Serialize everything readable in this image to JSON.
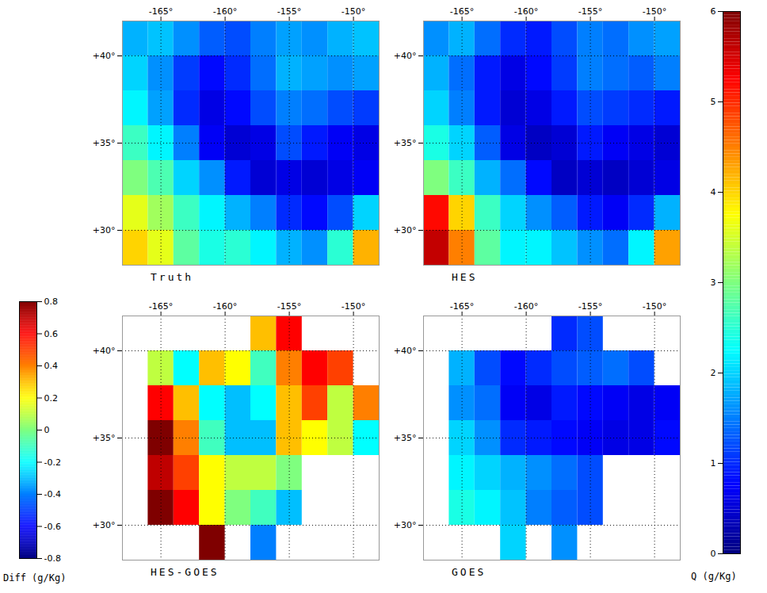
{
  "chart_data": [
    {
      "type": "heatmap",
      "title": "Truth",
      "x": [
        -167,
        -165,
        -163,
        -161,
        -159,
        -157,
        -155,
        -153,
        -151,
        -149
      ],
      "y": [
        41,
        39,
        37,
        35,
        33,
        31,
        29
      ],
      "values": [
        [
          1.8,
          1.9,
          1.6,
          1.3,
          1.2,
          1.5,
          1.7,
          1.6,
          1.8,
          1.9
        ],
        [
          2.0,
          1.6,
          1.1,
          0.8,
          1.0,
          1.4,
          1.8,
          1.7,
          1.6,
          1.7
        ],
        [
          2.2,
          1.7,
          1.0,
          0.6,
          0.8,
          1.2,
          1.5,
          1.4,
          1.2,
          1.1
        ],
        [
          2.6,
          2.2,
          1.5,
          0.7,
          0.5,
          0.6,
          1.2,
          0.9,
          0.7,
          0.6
        ],
        [
          3.0,
          2.7,
          2.0,
          1.6,
          0.9,
          0.5,
          0.6,
          0.5,
          0.6,
          0.7
        ],
        [
          3.6,
          3.2,
          2.6,
          2.2,
          1.8,
          1.5,
          1.0,
          0.8,
          1.2,
          2.0
        ],
        [
          4.0,
          3.6,
          2.8,
          2.4,
          2.5,
          2.2,
          1.8,
          1.6,
          2.5,
          4.2
        ]
      ],
      "xlim": [
        -168,
        -148
      ],
      "ylim": [
        28,
        42
      ],
      "xticks": [
        {
          "value": -165,
          "label": "-165°"
        },
        {
          "value": -160,
          "label": "-160°"
        },
        {
          "value": -155,
          "label": "-155°"
        },
        {
          "value": -150,
          "label": "-150°"
        }
      ],
      "yticks": [
        {
          "value": 30,
          "label": "+30°"
        },
        {
          "value": 35,
          "label": "+35°"
        },
        {
          "value": 40,
          "label": "+40°"
        }
      ],
      "grid": true,
      "colorbar": "Q (g/Kg)"
    },
    {
      "type": "heatmap",
      "title": "HES",
      "x": [
        -167,
        -165,
        -163,
        -161,
        -159,
        -157,
        -155,
        -153,
        -151,
        -149
      ],
      "y": [
        41,
        39,
        37,
        35,
        33,
        31,
        29
      ],
      "values": [
        [
          1.6,
          1.8,
          1.4,
          1.0,
          0.9,
          1.2,
          1.5,
          1.4,
          1.6,
          1.7
        ],
        [
          1.8,
          1.4,
          0.9,
          0.6,
          0.8,
          1.1,
          1.5,
          1.4,
          1.3,
          1.5
        ],
        [
          2.0,
          1.5,
          0.9,
          0.5,
          0.6,
          0.9,
          1.2,
          1.1,
          1.0,
          0.9
        ],
        [
          2.4,
          2.0,
          1.3,
          0.6,
          0.4,
          0.5,
          0.9,
          0.7,
          0.6,
          0.5
        ],
        [
          3.0,
          2.6,
          1.8,
          1.4,
          0.8,
          0.4,
          0.5,
          0.4,
          0.5,
          0.6
        ],
        [
          5.2,
          4.0,
          2.6,
          2.0,
          1.6,
          1.3,
          0.9,
          0.7,
          1.0,
          1.8
        ],
        [
          5.6,
          4.5,
          2.8,
          2.2,
          2.2,
          1.9,
          1.6,
          1.4,
          2.2,
          4.3
        ]
      ],
      "xlim": [
        -168,
        -148
      ],
      "ylim": [
        28,
        42
      ],
      "xticks": [
        {
          "value": -165,
          "label": "-165°"
        },
        {
          "value": -160,
          "label": "-160°"
        },
        {
          "value": -155,
          "label": "-155°"
        },
        {
          "value": -150,
          "label": "-150°"
        }
      ],
      "yticks": [
        {
          "value": 30,
          "label": "+30°"
        },
        {
          "value": 35,
          "label": "+35°"
        },
        {
          "value": 40,
          "label": "+40°"
        }
      ],
      "grid": true,
      "colorbar": "Q (g/Kg)"
    },
    {
      "type": "heatmap",
      "title": "HES-GOES",
      "x": [
        -167,
        -165,
        -163,
        -161,
        -159,
        -157,
        -155,
        -153,
        -151,
        -149
      ],
      "y": [
        41,
        39,
        37,
        35,
        33,
        31,
        29
      ],
      "values": [
        [
          null,
          null,
          null,
          null,
          null,
          0.3,
          0.6,
          null,
          null,
          null
        ],
        [
          null,
          0.1,
          -0.2,
          0.3,
          0.2,
          -0.1,
          0.4,
          0.6,
          0.5,
          null
        ],
        [
          null,
          0.6,
          0.3,
          -0.2,
          -0.3,
          -0.2,
          0.3,
          0.5,
          0.1,
          0.4
        ],
        [
          null,
          0.8,
          0.4,
          -0.1,
          -0.3,
          -0.3,
          0.3,
          0.2,
          0.1,
          -0.2
        ],
        [
          null,
          0.7,
          0.5,
          0.2,
          0.1,
          0.1,
          0.0,
          null,
          null,
          null
        ],
        [
          null,
          0.8,
          0.6,
          0.2,
          0.0,
          -0.1,
          -0.3,
          null,
          null,
          null
        ],
        [
          null,
          null,
          null,
          0.8,
          null,
          -0.4,
          null,
          null,
          null,
          null
        ]
      ],
      "xlim": [
        -168,
        -148
      ],
      "ylim": [
        28,
        42
      ],
      "xticks": [
        {
          "value": -165,
          "label": "-165°"
        },
        {
          "value": -160,
          "label": "-160°"
        },
        {
          "value": -155,
          "label": "-155°"
        },
        {
          "value": -150,
          "label": "-150°"
        }
      ],
      "yticks": [
        {
          "value": 30,
          "label": "+30°"
        },
        {
          "value": 35,
          "label": "+35°"
        },
        {
          "value": 40,
          "label": "+40°"
        }
      ],
      "grid": true,
      "colorbar": "Diff (g/Kg)"
    },
    {
      "type": "heatmap",
      "title": "GOES",
      "x": [
        -167,
        -165,
        -163,
        -161,
        -159,
        -157,
        -155,
        -153,
        -151,
        -149
      ],
      "y": [
        41,
        39,
        37,
        35,
        33,
        31,
        29
      ],
      "values": [
        [
          null,
          null,
          null,
          null,
          null,
          1.0,
          1.2,
          null,
          null,
          null
        ],
        [
          null,
          1.8,
          1.2,
          0.8,
          1.0,
          1.2,
          1.3,
          1.4,
          1.2,
          null
        ],
        [
          null,
          1.6,
          1.4,
          0.7,
          0.6,
          0.9,
          0.8,
          0.7,
          0.6,
          0.7
        ],
        [
          null,
          2.0,
          1.6,
          1.0,
          0.9,
          0.8,
          0.7,
          0.6,
          0.6,
          0.8
        ],
        [
          null,
          2.2,
          2.0,
          1.8,
          1.6,
          1.4,
          1.2,
          null,
          null,
          null
        ],
        [
          null,
          2.4,
          2.2,
          1.9,
          1.5,
          1.3,
          1.2,
          null,
          null,
          null
        ],
        [
          null,
          null,
          null,
          2.0,
          null,
          1.6,
          null,
          null,
          null,
          null
        ]
      ],
      "xlim": [
        -168,
        -148
      ],
      "ylim": [
        28,
        42
      ],
      "xticks": [
        {
          "value": -165,
          "label": "-165°"
        },
        {
          "value": -160,
          "label": "-160°"
        },
        {
          "value": -155,
          "label": "-155°"
        },
        {
          "value": -150,
          "label": "-150°"
        }
      ],
      "yticks": [
        {
          "value": 30,
          "label": "+30°"
        },
        {
          "value": 35,
          "label": "+35°"
        },
        {
          "value": 40,
          "label": "+40°"
        }
      ],
      "grid": true,
      "colorbar": "Q (g/Kg)"
    },
    {
      "type": "colorbar",
      "label": "Q (g/Kg)",
      "range": [
        0,
        6
      ],
      "ticks": [
        0,
        1,
        2,
        3,
        4,
        5,
        6
      ]
    },
    {
      "type": "colorbar",
      "label": "Diff (g/Kg)",
      "range": [
        -0.8,
        0.8
      ],
      "ticks": [
        -0.8,
        -0.6,
        -0.4,
        -0.2,
        0,
        0.2,
        0.4,
        0.6,
        0.8
      ]
    }
  ]
}
